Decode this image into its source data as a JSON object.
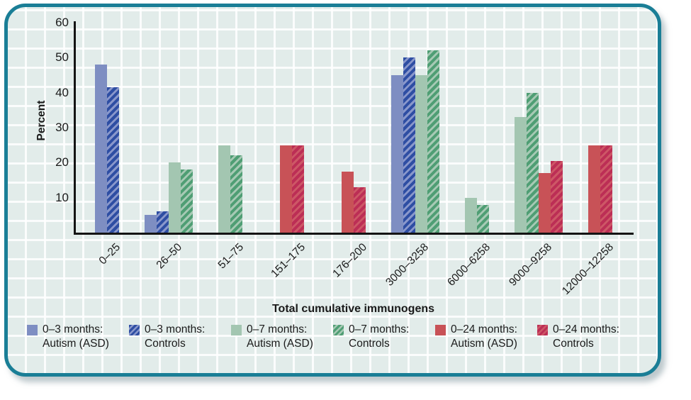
{
  "chart_data": {
    "type": "bar",
    "title": "",
    "xlabel": "Total cumulative immunogens",
    "ylabel": "Percent",
    "ylim": [
      0,
      60
    ],
    "yticks": [
      10,
      20,
      30,
      40,
      50,
      60
    ],
    "grid": true,
    "legend_position": "bottom",
    "categories": [
      "0–25",
      "26–50",
      "51–75",
      "151–175",
      "176–200",
      "3000–3258",
      "6000–6258",
      "9000–9258",
      "12000–12258"
    ],
    "series": [
      {
        "name": "0–3 months: Autism (ASD)",
        "style": "solid",
        "color": "#7e8ec2",
        "stripe": null,
        "values": [
          48,
          5,
          null,
          null,
          null,
          45,
          null,
          null,
          null
        ]
      },
      {
        "name": "0–3 months: Controls",
        "style": "hatched",
        "color": "#2e4ea3",
        "stripe": "#8997cb",
        "values": [
          41.5,
          6,
          null,
          null,
          null,
          50,
          null,
          null,
          null
        ]
      },
      {
        "name": "0–7 months: Autism (ASD)",
        "style": "solid",
        "color": "#a3c6b1",
        "stripe": null,
        "values": [
          null,
          20,
          25,
          null,
          null,
          45,
          10,
          33,
          null
        ]
      },
      {
        "name": "0–7 months: Controls",
        "style": "hatched",
        "color": "#4f9e74",
        "stripe": "#a6c9b4",
        "values": [
          null,
          18,
          22,
          null,
          null,
          52,
          8,
          40,
          null
        ]
      },
      {
        "name": "0–24 months: Autism (ASD)",
        "style": "solid",
        "color": "#c85257",
        "stripe": null,
        "values": [
          null,
          null,
          null,
          25,
          17.5,
          null,
          null,
          17,
          25
        ]
      },
      {
        "name": "0–24 months: Controls",
        "style": "hatched",
        "color": "#bc2e55",
        "stripe": "#cd5766",
        "values": [
          null,
          null,
          null,
          25,
          13,
          null,
          null,
          20.5,
          25
        ]
      }
    ],
    "colors": {
      "card_border": "#1a7e96",
      "card_background": "#e2ecea",
      "grid_line": "#ffffff",
      "axis": "#141414"
    }
  }
}
